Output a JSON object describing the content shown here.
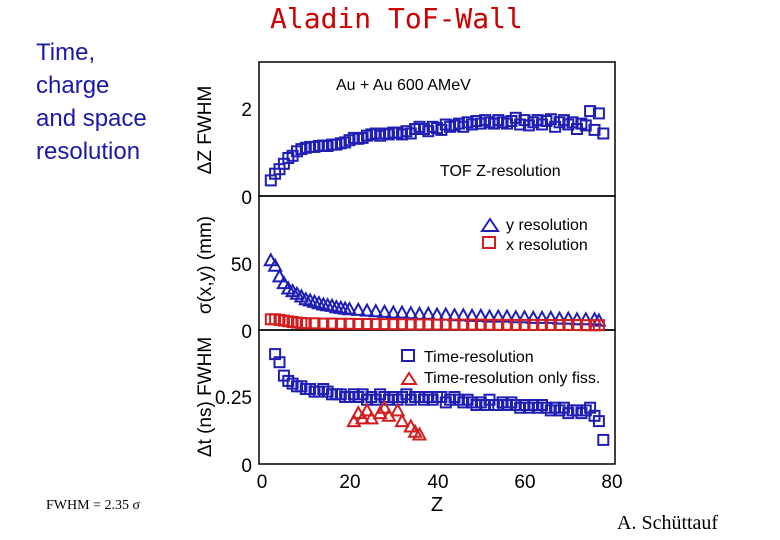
{
  "slide": {
    "title": "Aladin ToF-Wall",
    "side_text": [
      "Time,",
      "charge",
      "and space",
      "resolution"
    ],
    "footnote": "FWHM = 2.35 σ",
    "author": "A. Schüttauf",
    "colors": {
      "title": "#cc0000",
      "side": "#1a1aa6",
      "blue": "#1f1fb4",
      "red": "#d21e1e"
    }
  },
  "chart_data": [
    {
      "type": "scatter",
      "panel": "top",
      "ylabel": "ΔZ FWHM",
      "yticks": [
        "0",
        "2"
      ],
      "ylim": [
        0,
        3
      ],
      "xlim": [
        0,
        80
      ],
      "annotations": [
        "Au + Au 600 AMeV",
        "TOF Z-resolution"
      ],
      "series": [
        {
          "name": "Z-resolution",
          "marker": "square",
          "color": "#1f1fb4",
          "x": [
            2,
            3,
            4,
            5,
            6,
            7,
            8,
            9,
            10,
            11,
            12,
            13,
            14,
            15,
            16,
            17,
            18,
            19,
            20,
            21,
            22,
            23,
            24,
            25,
            26,
            27,
            28,
            29,
            30,
            31,
            32,
            33,
            34,
            35,
            36,
            37,
            38,
            39,
            40,
            41,
            42,
            43,
            44,
            45,
            46,
            47,
            48,
            49,
            50,
            51,
            52,
            53,
            54,
            55,
            56,
            57,
            58,
            59,
            60,
            61,
            62,
            63,
            64,
            65,
            66,
            67,
            68,
            69,
            70,
            71,
            72,
            73,
            74,
            75,
            76,
            77,
            78
          ],
          "y": [
            0.35,
            0.5,
            0.6,
            0.72,
            0.85,
            0.9,
            1.0,
            1.05,
            1.08,
            1.1,
            1.1,
            1.12,
            1.13,
            1.12,
            1.15,
            1.15,
            1.18,
            1.2,
            1.25,
            1.3,
            1.28,
            1.3,
            1.35,
            1.38,
            1.4,
            1.35,
            1.4,
            1.38,
            1.42,
            1.42,
            1.38,
            1.45,
            1.4,
            1.5,
            1.55,
            1.5,
            1.45,
            1.55,
            1.52,
            1.48,
            1.6,
            1.55,
            1.58,
            1.62,
            1.55,
            1.65,
            1.6,
            1.68,
            1.62,
            1.7,
            1.65,
            1.62,
            1.7,
            1.65,
            1.62,
            1.68,
            1.75,
            1.6,
            1.7,
            1.58,
            1.65,
            1.7,
            1.6,
            1.68,
            1.72,
            1.55,
            1.65,
            1.7,
            1.6,
            1.65,
            1.5,
            1.62,
            1.58,
            1.9,
            1.48,
            1.85,
            1.4
          ]
        }
      ]
    },
    {
      "type": "scatter",
      "panel": "middle",
      "ylabel": "σ(x,y) (mm)",
      "yticks": [
        "0",
        "50"
      ],
      "ylim": [
        0,
        100
      ],
      "xlim": [
        0,
        80
      ],
      "legend": [
        "y resolution",
        "x resolution"
      ],
      "series": [
        {
          "name": "y resolution",
          "marker": "triangle",
          "color": "#1f1fb4",
          "x": [
            2,
            3,
            4,
            5,
            6,
            7,
            8,
            9,
            10,
            11,
            12,
            13,
            14,
            15,
            16,
            17,
            18,
            19,
            20,
            22,
            24,
            26,
            28,
            30,
            32,
            34,
            36,
            38,
            40,
            42,
            44,
            46,
            48,
            50,
            52,
            54,
            56,
            58,
            60,
            62,
            64,
            66,
            68,
            70,
            72,
            74,
            76,
            77
          ],
          "y": [
            52,
            48,
            40,
            35,
            31,
            29,
            27,
            25,
            23,
            22,
            21,
            20,
            19,
            18.5,
            18,
            17,
            16.5,
            16,
            15.5,
            15,
            14.5,
            14,
            13.5,
            13,
            13,
            12.5,
            12,
            12,
            11.5,
            11.5,
            11,
            11,
            10.5,
            10.5,
            10,
            10,
            10,
            9.5,
            9.5,
            9,
            9,
            9,
            8.5,
            8.5,
            8,
            8,
            8,
            7
          ]
        },
        {
          "name": "x resolution",
          "marker": "square",
          "color": "#d21e1e",
          "x": [
            2,
            3,
            4,
            5,
            6,
            7,
            8,
            9,
            10,
            12,
            14,
            16,
            18,
            20,
            22,
            24,
            26,
            28,
            30,
            32,
            34,
            36,
            38,
            40,
            42,
            44,
            46,
            48,
            50,
            52,
            54,
            56,
            58,
            60,
            62,
            64,
            66,
            68,
            70,
            72,
            74,
            76,
            77
          ],
          "y": [
            8,
            8,
            7.5,
            7,
            6.5,
            6,
            5.5,
            5.2,
            5,
            5,
            4.8,
            4.8,
            4.6,
            4.6,
            4.5,
            4.5,
            4.4,
            4.4,
            4.3,
            4.3,
            4.2,
            4.2,
            4.2,
            4.1,
            4.1,
            4,
            4,
            4,
            4,
            3.9,
            3.9,
            3.9,
            3.8,
            3.8,
            3.8,
            3.8,
            3.7,
            3.7,
            3.7,
            3.7,
            3.6,
            3.6,
            3.6
          ]
        }
      ]
    },
    {
      "type": "scatter",
      "panel": "bottom",
      "ylabel": "Δt (ns) FWHM",
      "yticks": [
        "0",
        "0.25"
      ],
      "ylim": [
        0,
        0.5
      ],
      "xlim": [
        0,
        80
      ],
      "xticks": [
        "0",
        "20",
        "40",
        "60",
        "80"
      ],
      "xlabel": "Z",
      "legend": [
        "Time-resolution",
        "Time-resolution only fiss."
      ],
      "series": [
        {
          "name": "Time-resolution",
          "marker": "square",
          "color": "#1f1fb4",
          "x": [
            3,
            4,
            5,
            6,
            7,
            8,
            9,
            10,
            11,
            12,
            13,
            14,
            15,
            16,
            17,
            18,
            19,
            20,
            21,
            22,
            23,
            24,
            25,
            26,
            27,
            28,
            29,
            30,
            31,
            32,
            33,
            34,
            35,
            36,
            37,
            38,
            39,
            40,
            41,
            42,
            43,
            44,
            45,
            46,
            47,
            48,
            49,
            50,
            51,
            52,
            53,
            54,
            55,
            56,
            57,
            58,
            59,
            60,
            61,
            62,
            63,
            64,
            65,
            66,
            67,
            68,
            69,
            70,
            71,
            72,
            73,
            74,
            75,
            76,
            77,
            78
          ],
          "y": [
            0.41,
            0.38,
            0.33,
            0.31,
            0.3,
            0.29,
            0.29,
            0.28,
            0.28,
            0.27,
            0.27,
            0.28,
            0.27,
            0.26,
            0.26,
            0.26,
            0.25,
            0.25,
            0.26,
            0.25,
            0.26,
            0.24,
            0.25,
            0.24,
            0.26,
            0.25,
            0.24,
            0.25,
            0.24,
            0.25,
            0.26,
            0.24,
            0.25,
            0.25,
            0.24,
            0.25,
            0.24,
            0.25,
            0.25,
            0.23,
            0.24,
            0.25,
            0.24,
            0.23,
            0.24,
            0.23,
            0.22,
            0.23,
            0.22,
            0.24,
            0.22,
            0.22,
            0.23,
            0.22,
            0.23,
            0.22,
            0.21,
            0.22,
            0.21,
            0.22,
            0.21,
            0.22,
            0.21,
            0.2,
            0.21,
            0.2,
            0.21,
            0.19,
            0.2,
            0.2,
            0.19,
            0.2,
            0.21,
            0.18,
            0.16,
            0.09
          ]
        },
        {
          "name": "Time-resolution only fiss.",
          "marker": "triangle",
          "color": "#d21e1e",
          "x": [
            21,
            22,
            23,
            24,
            25,
            27,
            28,
            29,
            31,
            32,
            34,
            35,
            36
          ],
          "y": [
            0.16,
            0.19,
            0.17,
            0.2,
            0.17,
            0.19,
            0.21,
            0.18,
            0.2,
            0.16,
            0.14,
            0.12,
            0.11
          ]
        }
      ]
    }
  ]
}
